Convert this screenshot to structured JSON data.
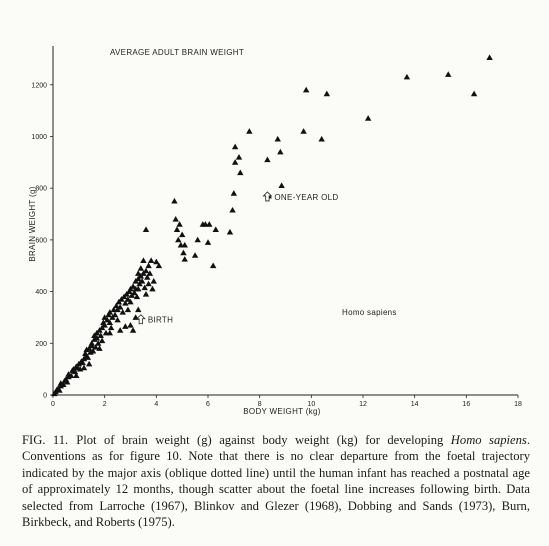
{
  "chart_data": {
    "type": "scatter",
    "title": "AVERAGE ADULT BRAIN WEIGHT",
    "xlabel": "BODY WEIGHT (kg)",
    "ylabel": "BRAIN WEIGHT (g)",
    "xlim": [
      0,
      18
    ],
    "ylim": [
      0,
      1350
    ],
    "xticks": [
      0,
      2,
      4,
      6,
      8,
      10,
      12,
      14,
      16,
      18
    ],
    "yticks": [
      0,
      200,
      400,
      600,
      800,
      1000,
      1200
    ],
    "marker": "triangle",
    "species_label": "Homo sapiens",
    "annotations": [
      {
        "text": "BIRTH",
        "x": 3.4,
        "y": 295
      },
      {
        "text": "ONE-YEAR OLD",
        "x": 8.3,
        "y": 770
      }
    ],
    "points": [
      [
        0.05,
        5
      ],
      [
        0.1,
        12
      ],
      [
        0.15,
        20
      ],
      [
        0.2,
        25
      ],
      [
        0.25,
        18
      ],
      [
        0.3,
        35
      ],
      [
        0.3,
        45
      ],
      [
        0.4,
        40
      ],
      [
        0.45,
        55
      ],
      [
        0.5,
        60
      ],
      [
        0.55,
        50
      ],
      [
        0.6,
        70
      ],
      [
        0.6,
        80
      ],
      [
        0.7,
        75
      ],
      [
        0.75,
        95
      ],
      [
        0.8,
        100
      ],
      [
        0.85,
        90
      ],
      [
        0.9,
        110
      ],
      [
        0.95,
        105
      ],
      [
        1.0,
        120
      ],
      [
        1.05,
        100
      ],
      [
        1.1,
        130
      ],
      [
        1.15,
        125
      ],
      [
        1.2,
        140
      ],
      [
        1.25,
        160
      ],
      [
        1.3,
        150
      ],
      [
        1.3,
        175
      ],
      [
        1.35,
        145
      ],
      [
        1.4,
        180
      ],
      [
        1.45,
        165
      ],
      [
        1.5,
        190
      ],
      [
        1.5,
        200
      ],
      [
        1.55,
        170
      ],
      [
        1.6,
        215
      ],
      [
        1.65,
        185
      ],
      [
        1.7,
        220
      ],
      [
        1.7,
        240
      ],
      [
        1.75,
        200
      ],
      [
        1.8,
        250
      ],
      [
        1.85,
        230
      ],
      [
        1.9,
        260
      ],
      [
        1.9,
        210
      ],
      [
        1.95,
        280
      ],
      [
        2.0,
        270
      ],
      [
        2.0,
        300
      ],
      [
        2.05,
        240
      ],
      [
        2.1,
        290
      ],
      [
        2.15,
        310
      ],
      [
        2.2,
        280
      ],
      [
        2.2,
        320
      ],
      [
        2.25,
        260
      ],
      [
        2.3,
        300
      ],
      [
        2.35,
        330
      ],
      [
        2.4,
        310
      ],
      [
        2.45,
        345
      ],
      [
        2.5,
        290
      ],
      [
        2.5,
        330
      ],
      [
        2.55,
        360
      ],
      [
        2.6,
        340
      ],
      [
        2.65,
        370
      ],
      [
        2.7,
        320
      ],
      [
        2.75,
        380
      ],
      [
        2.8,
        355
      ],
      [
        2.85,
        390
      ],
      [
        2.9,
        370
      ],
      [
        2.95,
        400
      ],
      [
        3.0,
        410
      ],
      [
        3.0,
        360
      ],
      [
        3.05,
        385
      ],
      [
        3.1,
        420
      ],
      [
        3.15,
        395
      ],
      [
        3.2,
        440
      ],
      [
        3.2,
        410
      ],
      [
        3.25,
        380
      ],
      [
        3.3,
        450
      ],
      [
        3.3,
        470
      ],
      [
        3.35,
        430
      ],
      [
        3.4,
        460
      ],
      [
        3.4,
        490
      ],
      [
        3.45,
        440
      ],
      [
        3.5,
        470
      ],
      [
        3.5,
        520
      ],
      [
        3.55,
        415
      ],
      [
        3.6,
        480
      ],
      [
        3.65,
        455
      ],
      [
        3.7,
        500
      ],
      [
        3.7,
        430
      ],
      [
        3.75,
        470
      ],
      [
        3.8,
        520
      ],
      [
        3.85,
        410
      ],
      [
        3.9,
        440
      ],
      [
        4.0,
        515
      ],
      [
        4.1,
        500
      ],
      [
        3.3,
        410
      ],
      [
        3.6,
        390
      ],
      [
        2.9,
        330
      ],
      [
        2.6,
        250
      ],
      [
        2.2,
        240
      ],
      [
        1.8,
        180
      ],
      [
        1.6,
        230
      ],
      [
        3.0,
        270
      ],
      [
        3.1,
        250
      ],
      [
        2.8,
        265
      ],
      [
        3.2,
        300
      ],
      [
        3.3,
        330
      ],
      [
        1.4,
        120
      ],
      [
        1.2,
        105
      ],
      [
        0.9,
        75
      ],
      [
        3.6,
        640
      ],
      [
        4.7,
        750
      ],
      [
        4.75,
        680
      ],
      [
        4.8,
        640
      ],
      [
        4.85,
        600
      ],
      [
        4.9,
        660
      ],
      [
        4.95,
        580
      ],
      [
        5.0,
        620
      ],
      [
        5.05,
        550
      ],
      [
        5.1,
        525
      ],
      [
        5.1,
        580
      ],
      [
        5.5,
        540
      ],
      [
        5.6,
        600
      ],
      [
        5.8,
        660
      ],
      [
        5.9,
        660
      ],
      [
        6.0,
        590
      ],
      [
        6.05,
        660
      ],
      [
        6.2,
        500
      ],
      [
        6.3,
        640
      ],
      [
        6.85,
        630
      ],
      [
        6.95,
        715
      ],
      [
        7.0,
        780
      ],
      [
        7.05,
        900
      ],
      [
        7.05,
        960
      ],
      [
        7.2,
        920
      ],
      [
        7.25,
        860
      ],
      [
        7.6,
        1020
      ],
      [
        8.3,
        910
      ],
      [
        8.35,
        770
      ],
      [
        8.7,
        990
      ],
      [
        8.8,
        940
      ],
      [
        8.85,
        810
      ],
      [
        9.7,
        1020
      ],
      [
        9.8,
        1180
      ],
      [
        10.4,
        990
      ],
      [
        10.6,
        1165
      ],
      [
        12.2,
        1070
      ],
      [
        13.7,
        1230
      ],
      [
        15.3,
        1240
      ],
      [
        16.3,
        1165
      ],
      [
        16.9,
        1305
      ]
    ]
  },
  "caption": {
    "figure_label": "FIG. 11.",
    "text_before_italic": "Plot of brain weight (g) against body weight (kg) for developing ",
    "italic_species": "Homo sapiens",
    "text_after_italic": ". Conventions as for figure 10. Note that there is no clear departure from the foetal trajectory indicated by the major axis (oblique dotted line) until the human infant has reached a postnatal age of approximately 12 months, though scatter about the foetal line increases following birth. Data selected from Larroche (1967), Blinkov and Glezer (1968), Dobbing and Sands (1973), Burn, Birkbeck, and Roberts (1975)."
  }
}
